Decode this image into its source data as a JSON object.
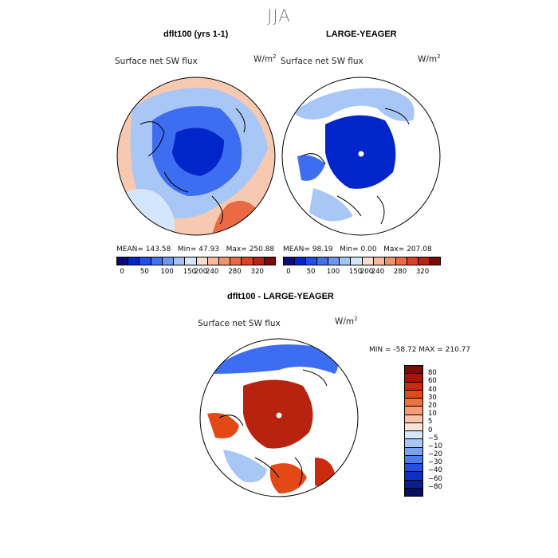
{
  "season": "JJA",
  "panels": [
    {
      "title": "dflt100 (yrs 1-1)",
      "variable": "Surface net SW flux",
      "units_base": "W/m",
      "units_exp": "2",
      "stats": {
        "mean_label": "MEAN=",
        "mean": "143.58",
        "min_label": "Min=",
        "min": "47.93",
        "max_label": "Max=",
        "max": "250.88"
      }
    },
    {
      "title": "LARGE-YEAGER",
      "variable": "Surface net SW flux",
      "units_base": "W/m",
      "units_exp": "2",
      "stats": {
        "mean_label": "MEAN=",
        "mean": "98.19",
        "min_label": "Min=",
        "min": "0.00",
        "max_label": "Max=",
        "max": "207.08"
      }
    },
    {
      "title": "dflt100 - LARGE-YEAGER",
      "variable": "Surface net SW flux",
      "units_base": "W/m",
      "units_exp": "2",
      "stats_line": "MIN = -58.72  MAX = 210.77"
    }
  ],
  "abs_colorbar": {
    "colors": [
      "#0a0a7a",
      "#0026c9",
      "#1f4fe6",
      "#4173ee",
      "#6f97f2",
      "#a4c3f7",
      "#d4e6fb",
      "#f6ddd0",
      "#f7b99c",
      "#f2926d",
      "#e96a45",
      "#d9431f",
      "#b8230f",
      "#7e0a06"
    ],
    "ticks": [
      "0",
      "50",
      "100",
      "150",
      "200",
      "240",
      "280",
      "320"
    ]
  },
  "diff_colorbar": {
    "colors": [
      "#7e0a06",
      "#a81508",
      "#cc2a0d",
      "#e24917",
      "#ee7043",
      "#f59b79",
      "#f9c4ab",
      "#fbe4d6",
      "#d6e6fb",
      "#a8c6f6",
      "#7aa2f0",
      "#4d7ded",
      "#2450e2",
      "#0e2fc4",
      "#081f8f",
      "#05105e"
    ],
    "labels": [
      "80",
      "60",
      "40",
      "30",
      "20",
      "10",
      "5",
      "0",
      "−5",
      "−10",
      "−20",
      "−30",
      "−40",
      "−60",
      "−80"
    ]
  },
  "map_colors": {
    "ocean_fill_1": "#3d6df0",
    "ocean_fill_2": "#a8c6f6",
    "ocean_fill_3": "#0026c9",
    "warm_fill": "#f6c9b0",
    "diff_fill": "#cc2a0d",
    "diff_land": "#ffffff"
  }
}
